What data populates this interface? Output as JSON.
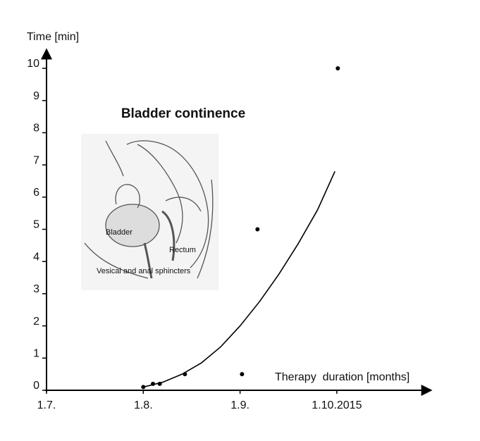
{
  "chart_data": {
    "type": "scatter",
    "title": "Bladder continence",
    "xlabel": "Therapy  duration [months]",
    "ylabel": "Time [min]",
    "series": [
      {
        "x": [
          1.0,
          1.1,
          1.17,
          1.43,
          2.02,
          2.18,
          3.01
        ],
        "values": [
          0.1,
          0.2,
          0.2,
          0.5,
          0.5,
          5,
          10
        ],
        "color": "#000000"
      }
    ],
    "fit": {
      "x": [
        1.0,
        1.2,
        1.4,
        1.6,
        1.8,
        2.0,
        2.2,
        2.4,
        2.6,
        2.8,
        2.98
      ],
      "values": [
        0.1,
        0.25,
        0.5,
        0.85,
        1.35,
        2.0,
        2.75,
        3.6,
        4.55,
        5.6,
        6.8
      ],
      "color": "#000000"
    },
    "xlim": [
      0,
      3.95
    ],
    "ylim": [
      0,
      10.5
    ],
    "xticks": [
      {
        "value": 0,
        "label": "1.7."
      },
      {
        "value": 1,
        "label": "1.8."
      },
      {
        "value": 2,
        "label": "1.9."
      },
      {
        "value": 3,
        "label": "1.10.2015"
      }
    ],
    "yticks": [
      0,
      1,
      2,
      3,
      4,
      5,
      6,
      7,
      8,
      9,
      10
    ],
    "annotations": [
      "Bladder",
      "Rectum",
      "Vesical and anal sphincters"
    ]
  }
}
